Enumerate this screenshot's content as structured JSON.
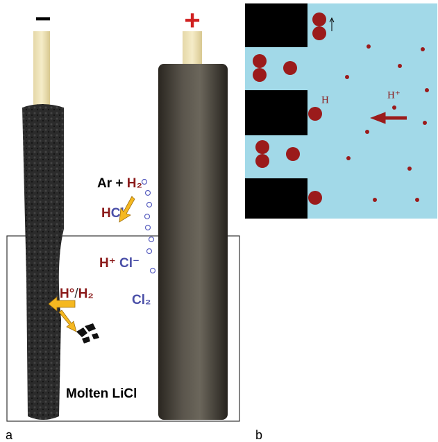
{
  "panel_a": {
    "polarity": {
      "negative": "−",
      "positive": "+"
    },
    "gas": {
      "prefix": "Ar +",
      "species": "H₂"
    },
    "hcl": {
      "h": "H",
      "cl": "Cl"
    },
    "ions": {
      "cation": "H⁺",
      "anion": "Cl⁻"
    },
    "hydrogen": {
      "atom": "H°",
      "sep": "/",
      "molecule": "H₂"
    },
    "chlorine": "Cl₂",
    "electrolyte": "Molten LiCl",
    "caption": "a"
  },
  "panel_b": {
    "atom_label": "H",
    "ion_label": "H⁺",
    "caption": "b"
  }
}
